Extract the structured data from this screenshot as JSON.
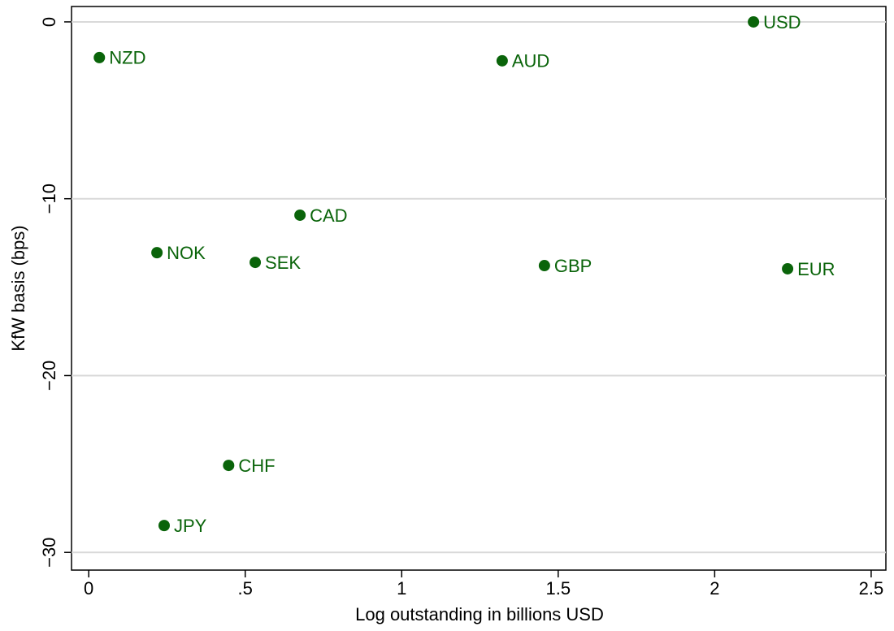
{
  "chart_data": {
    "type": "scatter",
    "xlabel": "Log outstanding in billions USD",
    "ylabel": "KfW basis (bps)",
    "labels": [
      "NZD",
      "AUD",
      "USD",
      "CAD",
      "NOK",
      "SEK",
      "GBP",
      "EUR",
      "CHF",
      "JPY"
    ],
    "x": [
      0.034,
      1.321,
      2.124,
      0.675,
      0.218,
      0.532,
      1.456,
      2.233,
      0.447,
      0.241
    ],
    "series": [
      {
        "color": "#0a640a",
        "values": [
          -2.02,
          -2.2,
          0,
          -10.93,
          -13.05,
          -13.6,
          -13.78,
          -13.96,
          -25.08,
          -28.48
        ]
      }
    ],
    "xlim": [
      -0.055,
      2.547
    ],
    "ylim": [
      -31.0,
      0.87
    ],
    "xticks": [
      0,
      {
        "value": 0.5,
        "label": ".5"
      },
      1,
      1.5,
      2,
      2.5
    ],
    "yticks": [
      0,
      {
        "value": -10,
        "label": "−10"
      },
      {
        "value": -20,
        "label": "−20"
      },
      {
        "value": -30,
        "label": "−30"
      }
    ],
    "grid": true
  }
}
